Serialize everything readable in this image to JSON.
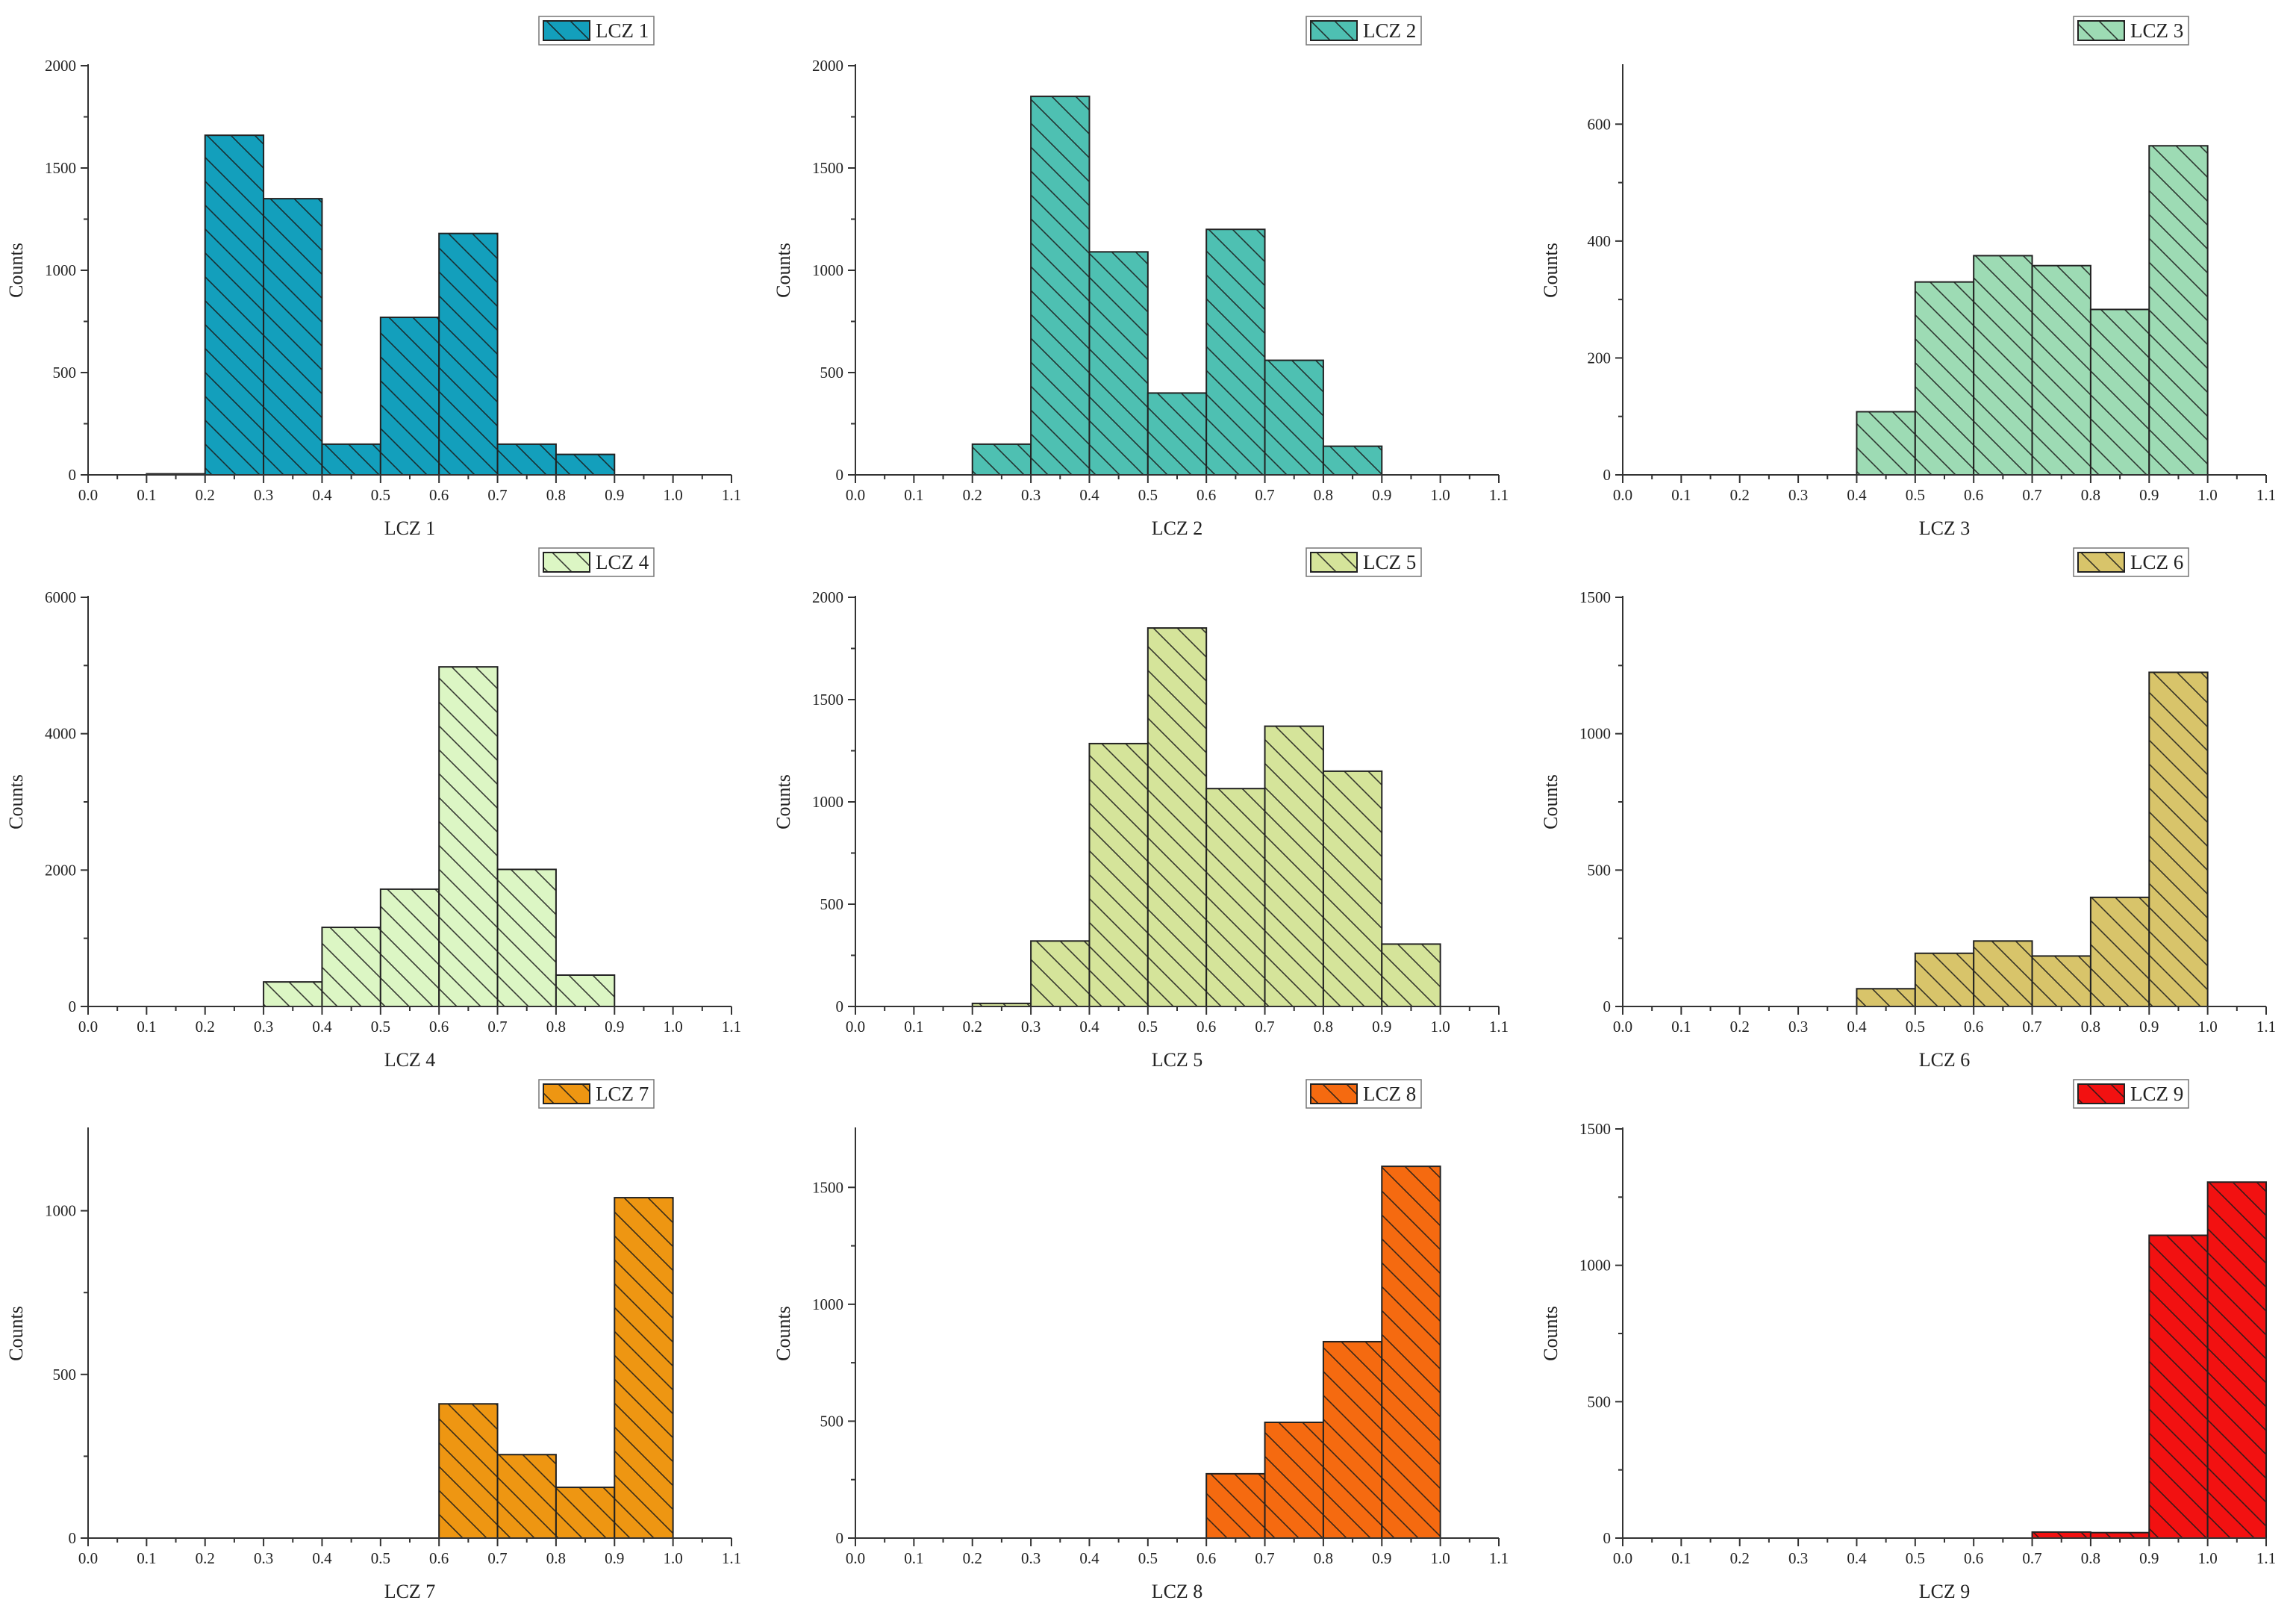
{
  "chart_data": [
    {
      "type": "bar",
      "panel": "LCZ 1",
      "legend": "LCZ 1",
      "xlabel": "LCZ 1",
      "ylabel": "Counts",
      "color": "#139fbc",
      "bin_width": 0.1,
      "xlim": [
        0.0,
        1.1
      ],
      "ylim": [
        0,
        2000
      ],
      "x_ticks": [
        "0.0",
        "0.1",
        "0.2",
        "0.3",
        "0.4",
        "0.5",
        "0.6",
        "0.7",
        "0.8",
        "0.9",
        "1.0",
        "1.1"
      ],
      "y_ticks": [
        0,
        500,
        1000,
        1500,
        2000
      ],
      "bins": [
        {
          "start": 0.1,
          "end": 0.2,
          "value": 5
        },
        {
          "start": 0.2,
          "end": 0.3,
          "value": 1660
        },
        {
          "start": 0.3,
          "end": 0.4,
          "value": 1350
        },
        {
          "start": 0.4,
          "end": 0.5,
          "value": 150
        },
        {
          "start": 0.5,
          "end": 0.6,
          "value": 770
        },
        {
          "start": 0.6,
          "end": 0.7,
          "value": 1180
        },
        {
          "start": 0.7,
          "end": 0.8,
          "value": 150
        },
        {
          "start": 0.8,
          "end": 0.9,
          "value": 100
        }
      ]
    },
    {
      "type": "bar",
      "panel": "LCZ 2",
      "legend": "LCZ 2",
      "xlabel": "LCZ 2",
      "ylabel": "Counts",
      "color": "#4ec0b2",
      "bin_width": 0.1,
      "xlim": [
        0.0,
        1.1
      ],
      "ylim": [
        0,
        2000
      ],
      "x_ticks": [
        "0.0",
        "0.1",
        "0.2",
        "0.3",
        "0.4",
        "0.5",
        "0.6",
        "0.7",
        "0.8",
        "0.9",
        "1.0",
        "1.1"
      ],
      "y_ticks": [
        0,
        500,
        1000,
        1500,
        2000
      ],
      "bins": [
        {
          "start": 0.2,
          "end": 0.3,
          "value": 150
        },
        {
          "start": 0.3,
          "end": 0.4,
          "value": 1850
        },
        {
          "start": 0.4,
          "end": 0.5,
          "value": 1090
        },
        {
          "start": 0.5,
          "end": 0.6,
          "value": 400
        },
        {
          "start": 0.6,
          "end": 0.7,
          "value": 1200
        },
        {
          "start": 0.7,
          "end": 0.8,
          "value": 560
        },
        {
          "start": 0.8,
          "end": 0.9,
          "value": 140
        }
      ]
    },
    {
      "type": "bar",
      "panel": "LCZ 3",
      "legend": "LCZ 3",
      "xlabel": "LCZ 3",
      "ylabel": "Counts",
      "color": "#9ddbb4",
      "bin_width": 0.1,
      "xlim": [
        0.0,
        1.1
      ],
      "ylim": [
        0,
        700
      ],
      "x_ticks": [
        "0.0",
        "0.1",
        "0.2",
        "0.3",
        "0.4",
        "0.5",
        "0.6",
        "0.7",
        "0.8",
        "0.9",
        "1.0",
        "1.1"
      ],
      "y_ticks": [
        0,
        200,
        400,
        600
      ],
      "bins": [
        {
          "start": 0.4,
          "end": 0.5,
          "value": 108
        },
        {
          "start": 0.5,
          "end": 0.6,
          "value": 330
        },
        {
          "start": 0.6,
          "end": 0.7,
          "value": 375
        },
        {
          "start": 0.7,
          "end": 0.8,
          "value": 358
        },
        {
          "start": 0.8,
          "end": 0.9,
          "value": 283
        },
        {
          "start": 0.9,
          "end": 1.0,
          "value": 563
        }
      ]
    },
    {
      "type": "bar",
      "panel": "LCZ 4",
      "legend": "LCZ 4",
      "xlabel": "LCZ 4",
      "ylabel": "Counts",
      "color": "#dcf6c4",
      "bin_width": 0.1,
      "xlim": [
        0.0,
        1.1
      ],
      "ylim": [
        0,
        6000
      ],
      "x_ticks": [
        "0.0",
        "0.1",
        "0.2",
        "0.3",
        "0.4",
        "0.5",
        "0.6",
        "0.7",
        "0.8",
        "0.9",
        "1.0",
        "1.1"
      ],
      "y_ticks": [
        0,
        2000,
        4000,
        6000
      ],
      "bins": [
        {
          "start": 0.3,
          "end": 0.4,
          "value": 360
        },
        {
          "start": 0.4,
          "end": 0.5,
          "value": 1160
        },
        {
          "start": 0.5,
          "end": 0.6,
          "value": 1720
        },
        {
          "start": 0.6,
          "end": 0.7,
          "value": 4980
        },
        {
          "start": 0.7,
          "end": 0.8,
          "value": 2010
        },
        {
          "start": 0.8,
          "end": 0.9,
          "value": 460
        }
      ]
    },
    {
      "type": "bar",
      "panel": "LCZ 5",
      "legend": "LCZ 5",
      "xlabel": "LCZ 5",
      "ylabel": "Counts",
      "color": "#d5e49a",
      "bin_width": 0.1,
      "xlim": [
        0.0,
        1.1
      ],
      "ylim": [
        0,
        2000
      ],
      "x_ticks": [
        "0.0",
        "0.1",
        "0.2",
        "0.3",
        "0.4",
        "0.5",
        "0.6",
        "0.7",
        "0.8",
        "0.9",
        "1.0",
        "1.1"
      ],
      "y_ticks": [
        0,
        500,
        1000,
        1500,
        2000
      ],
      "bins": [
        {
          "start": 0.2,
          "end": 0.3,
          "value": 15
        },
        {
          "start": 0.3,
          "end": 0.4,
          "value": 320
        },
        {
          "start": 0.4,
          "end": 0.5,
          "value": 1285
        },
        {
          "start": 0.5,
          "end": 0.6,
          "value": 1850
        },
        {
          "start": 0.6,
          "end": 0.7,
          "value": 1065
        },
        {
          "start": 0.7,
          "end": 0.8,
          "value": 1370
        },
        {
          "start": 0.8,
          "end": 0.9,
          "value": 1150
        },
        {
          "start": 0.9,
          "end": 1.0,
          "value": 305
        }
      ]
    },
    {
      "type": "bar",
      "panel": "LCZ 6",
      "legend": "LCZ 6",
      "xlabel": "LCZ 6",
      "ylabel": "Counts",
      "color": "#d8c46a",
      "bin_width": 0.1,
      "xlim": [
        0.0,
        1.1
      ],
      "ylim": [
        0,
        1500
      ],
      "x_ticks": [
        "0.0",
        "0.1",
        "0.2",
        "0.3",
        "0.4",
        "0.5",
        "0.6",
        "0.7",
        "0.8",
        "0.9",
        "1.0",
        "1.1"
      ],
      "y_ticks": [
        0,
        500,
        1000,
        1500
      ],
      "bins": [
        {
          "start": 0.4,
          "end": 0.5,
          "value": 65
        },
        {
          "start": 0.5,
          "end": 0.6,
          "value": 195
        },
        {
          "start": 0.6,
          "end": 0.7,
          "value": 240
        },
        {
          "start": 0.7,
          "end": 0.8,
          "value": 185
        },
        {
          "start": 0.8,
          "end": 0.9,
          "value": 400
        },
        {
          "start": 0.9,
          "end": 1.0,
          "value": 1225
        }
      ]
    },
    {
      "type": "bar",
      "panel": "LCZ 7",
      "legend": "LCZ 7",
      "xlabel": "LCZ 7",
      "ylabel": "Counts",
      "color": "#ee9612",
      "bin_width": 0.1,
      "xlim": [
        0.0,
        1.1
      ],
      "ylim": [
        0,
        1250
      ],
      "x_ticks": [
        "0.0",
        "0.1",
        "0.2",
        "0.3",
        "0.4",
        "0.5",
        "0.6",
        "0.7",
        "0.8",
        "0.9",
        "1.0",
        "1.1"
      ],
      "y_ticks": [
        0,
        500,
        1000
      ],
      "bins": [
        {
          "start": 0.6,
          "end": 0.7,
          "value": 410
        },
        {
          "start": 0.7,
          "end": 0.8,
          "value": 255
        },
        {
          "start": 0.8,
          "end": 0.9,
          "value": 155
        },
        {
          "start": 0.9,
          "end": 1.0,
          "value": 1040
        }
      ]
    },
    {
      "type": "bar",
      "panel": "LCZ 8",
      "legend": "LCZ 8",
      "xlabel": "LCZ 8",
      "ylabel": "Counts",
      "color": "#f56a10",
      "bin_width": 0.1,
      "xlim": [
        0.0,
        1.1
      ],
      "ylim": [
        0,
        1750
      ],
      "x_ticks": [
        "0.0",
        "0.1",
        "0.2",
        "0.3",
        "0.4",
        "0.5",
        "0.6",
        "0.7",
        "0.8",
        "0.9",
        "1.0",
        "1.1"
      ],
      "y_ticks": [
        0,
        500,
        1000,
        1500
      ],
      "bins": [
        {
          "start": 0.6,
          "end": 0.7,
          "value": 275
        },
        {
          "start": 0.7,
          "end": 0.8,
          "value": 495
        },
        {
          "start": 0.8,
          "end": 0.9,
          "value": 840
        },
        {
          "start": 0.9,
          "end": 1.0,
          "value": 1590
        }
      ]
    },
    {
      "type": "bar",
      "panel": "LCZ 9",
      "legend": "LCZ 9",
      "xlabel": "LCZ 9",
      "ylabel": "Counts",
      "color": "#f21111",
      "bin_width": 0.1,
      "xlim": [
        0.0,
        1.1
      ],
      "ylim": [
        0,
        1500
      ],
      "x_ticks": [
        "0.0",
        "0.1",
        "0.2",
        "0.3",
        "0.4",
        "0.5",
        "0.6",
        "0.7",
        "0.8",
        "0.9",
        "1.0",
        "1.1"
      ],
      "y_ticks": [
        0,
        500,
        1000,
        1500
      ],
      "bins": [
        {
          "start": 0.7,
          "end": 0.8,
          "value": 22
        },
        {
          "start": 0.8,
          "end": 0.9,
          "value": 20
        },
        {
          "start": 0.9,
          "end": 1.0,
          "value": 1110
        },
        {
          "start": 1.0,
          "end": 1.1,
          "value": 1305
        }
      ]
    }
  ]
}
